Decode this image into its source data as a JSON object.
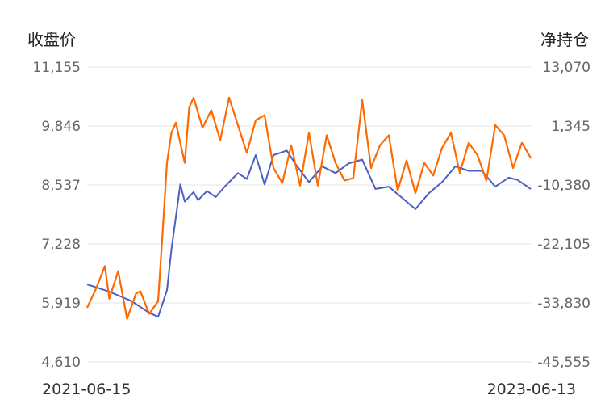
{
  "chart_data": {
    "type": "line",
    "left_axis_title": "收盘价",
    "right_axis_title": "净持仓",
    "left_ticks": [
      "11,155",
      "9,846",
      "8,537",
      "7,228",
      "5,919",
      "4,610"
    ],
    "right_ticks": [
      "13,070",
      "1,345",
      "-10,380",
      "-22,105",
      "-33,830",
      "-45,555"
    ],
    "left_ylim": [
      4610,
      11155
    ],
    "right_ylim": [
      -45555,
      13070
    ],
    "x_labels": [
      "2021-06-15",
      "2023-06-13"
    ],
    "grid": true,
    "series": [
      {
        "axis": "left",
        "color": "#4a5fc1",
        "x": [
          0,
          0.05,
          0.1,
          0.14,
          0.16,
          0.18,
          0.19,
          0.21,
          0.22,
          0.24,
          0.25,
          0.27,
          0.29,
          0.31,
          0.34,
          0.36,
          0.38,
          0.4,
          0.42,
          0.45,
          0.47,
          0.5,
          0.53,
          0.56,
          0.59,
          0.62,
          0.65,
          0.68,
          0.71,
          0.74,
          0.77,
          0.8,
          0.83,
          0.86,
          0.89,
          0.92,
          0.95,
          0.97,
          1.0
        ],
        "values": [
          6330,
          6170,
          5960,
          5700,
          5610,
          6200,
          7100,
          8550,
          8170,
          8380,
          8200,
          8400,
          8270,
          8500,
          8800,
          8670,
          9200,
          8550,
          9200,
          9300,
          9000,
          8600,
          8950,
          8800,
          9020,
          9100,
          8450,
          8500,
          8250,
          8000,
          8350,
          8600,
          8950,
          8850,
          8850,
          8500,
          8700,
          8650,
          8450
        ]
      },
      {
        "axis": "right",
        "color": "#ff6a00",
        "x": [
          0,
          0.02,
          0.04,
          0.05,
          0.07,
          0.09,
          0.11,
          0.12,
          0.14,
          0.16,
          0.17,
          0.18,
          0.19,
          0.2,
          0.22,
          0.23,
          0.24,
          0.26,
          0.28,
          0.3,
          0.32,
          0.34,
          0.36,
          0.38,
          0.4,
          0.42,
          0.44,
          0.46,
          0.48,
          0.5,
          0.52,
          0.54,
          0.56,
          0.58,
          0.6,
          0.62,
          0.64,
          0.66,
          0.68,
          0.7,
          0.72,
          0.74,
          0.76,
          0.78,
          0.8,
          0.82,
          0.84,
          0.86,
          0.88,
          0.9,
          0.92,
          0.94,
          0.96,
          0.98,
          1.0
        ],
        "values": [
          -34800,
          -31000,
          -26500,
          -33000,
          -27500,
          -37000,
          -32000,
          -31500,
          -36000,
          -33500,
          -20000,
          -6000,
          0,
          2000,
          -6000,
          5000,
          7000,
          1000,
          4500,
          -1500,
          7000,
          1500,
          -4000,
          2500,
          3500,
          -7000,
          -10000,
          -2500,
          -10500,
          0,
          -10500,
          -500,
          -6000,
          -9500,
          -9000,
          6500,
          -7000,
          -2500,
          -500,
          -11500,
          -5500,
          -12000,
          -6000,
          -8500,
          -3000,
          0,
          -8000,
          -2000,
          -4500,
          -9500,
          1500,
          -500,
          -7000,
          -2000,
          -5000
        ]
      }
    ]
  }
}
